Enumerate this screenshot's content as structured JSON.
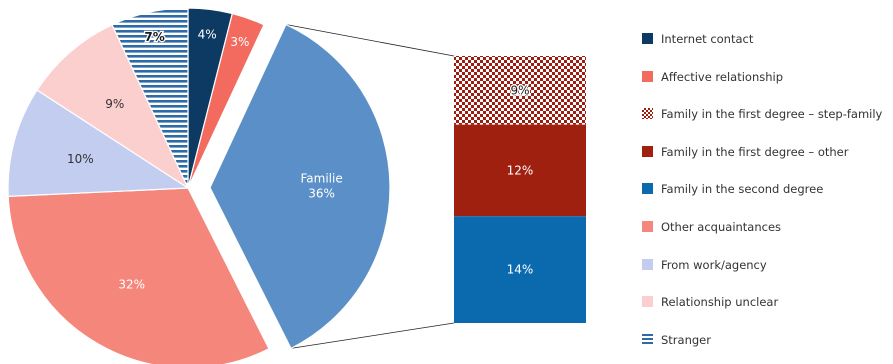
{
  "chart_data": {
    "type": "pie",
    "pie": {
      "slices": [
        {
          "name": "Internet contact",
          "value": 4,
          "label": "4%",
          "color": "#0d3a63"
        },
        {
          "name": "Affective relationship",
          "value": 3,
          "label": "3%",
          "color": "#f26b5e"
        },
        {
          "name": "Familie",
          "value": 36,
          "label": "Familie\n36%",
          "color": "#5b8fc7",
          "exploded": true
        },
        {
          "name": "Other acquaintances",
          "value": 32,
          "label": "32%",
          "color": "#f5867b"
        },
        {
          "name": "From work/agency",
          "value": 10,
          "label": "10%",
          "color": "#c3cdef"
        },
        {
          "name": "Relationship unclear",
          "value": 9,
          "label": "9%",
          "color": "#fccfcf"
        },
        {
          "name": "Stranger",
          "value": 7,
          "label": "7%",
          "color": "#2d6aa6",
          "pattern": "horizontal-stripes"
        }
      ]
    },
    "breakdown": {
      "type": "stacked-bar",
      "segments": [
        {
          "name": "Family in the first degree – step-family",
          "value": 9,
          "label": "9%",
          "color": "#9e1c10",
          "pattern": "checkered"
        },
        {
          "name": "Family in the first degree – other",
          "value": 12,
          "label": "12%",
          "color": "#a02010"
        },
        {
          "name": "Family in the second degree",
          "value": 14,
          "label": "14%",
          "color": "#0b6aad"
        }
      ]
    },
    "legend": {
      "placement": "right",
      "items": [
        {
          "label": "Internet contact",
          "color": "#0d3a63"
        },
        {
          "label": "Affective relationship",
          "color": "#f26b5e"
        },
        {
          "label": "Family in the first degree – step-family",
          "color": "#9e1c10",
          "pattern": "checkered"
        },
        {
          "label": "Family in the first degree – other",
          "color": "#a02010"
        },
        {
          "label": "Family in the second degree",
          "color": "#0b6aad"
        },
        {
          "label": "Other acquaintances",
          "color": "#f5867b"
        },
        {
          "label": "From work/agency",
          "color": "#c3cdef"
        },
        {
          "label": "Relationship unclear",
          "color": "#fccfcf"
        },
        {
          "label": "Stranger",
          "color": "#2d6aa6",
          "pattern": "horizontal-stripes"
        }
      ]
    }
  }
}
